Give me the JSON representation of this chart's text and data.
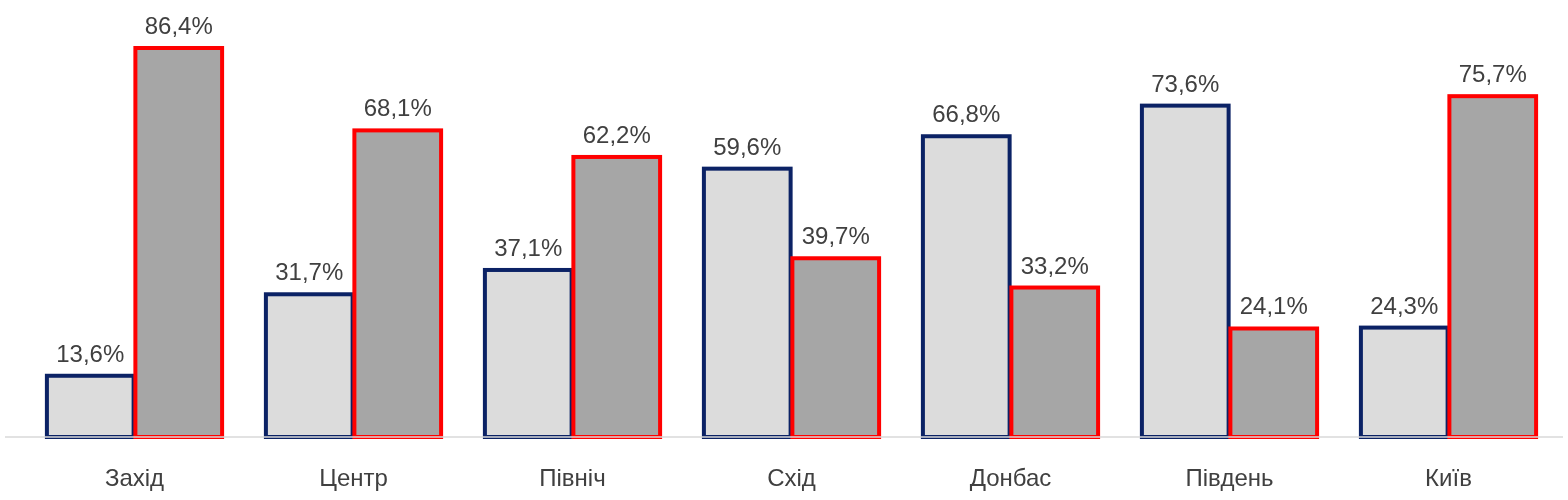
{
  "chart_data": {
    "type": "bar",
    "categories": [
      "Захід",
      "Центр",
      "Північ",
      "Схід",
      "Донбас",
      "Південь",
      "Київ"
    ],
    "series": [
      {
        "color": "#dcdcdc",
        "values": [
          13.6,
          31.7,
          37.1,
          59.6,
          66.8,
          73.6,
          24.3
        ],
        "value_labels": [
          "13,6%",
          "31,7%",
          "37,1%",
          "59,6%",
          "66,8%",
          "73,6%",
          "24,3%"
        ]
      },
      {
        "color": "#a6a6a6",
        "values": [
          86.4,
          68.1,
          62.2,
          39.7,
          33.2,
          24.1,
          75.7
        ],
        "value_labels": [
          "86,4%",
          "68,1%",
          "62,2%",
          "39,7%",
          "33,2%",
          "24,1%",
          "75,7%"
        ]
      }
    ],
    "orientation": "vertical"
  }
}
